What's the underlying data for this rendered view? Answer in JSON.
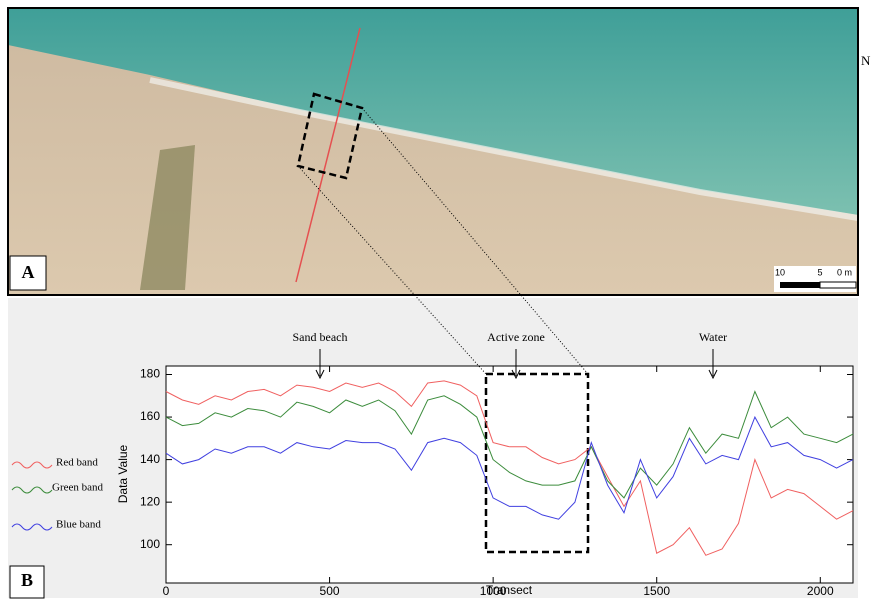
{
  "panel_a": {
    "label": "A",
    "north": "N",
    "scale_bar": [
      "10",
      "5",
      "0 m"
    ]
  },
  "chart_data": {
    "type": "line",
    "panel_label": "B",
    "x_label": "Transect",
    "y_label": "Data Value",
    "annotations": [
      "Sand beach",
      "Active zone",
      "Water"
    ],
    "x": [
      0,
      50,
      100,
      150,
      200,
      250,
      300,
      350,
      400,
      450,
      500,
      550,
      600,
      650,
      700,
      750,
      800,
      850,
      900,
      950,
      1000,
      1050,
      1100,
      1150,
      1200,
      1250,
      1300,
      1350,
      1400,
      1450,
      1500,
      1550,
      1600,
      1650,
      1700,
      1750,
      1800,
      1850,
      1900,
      1950,
      2000,
      2050,
      2100
    ],
    "series": [
      {
        "name": "Red band",
        "color": "#f06060",
        "values": [
          172,
          168,
          166,
          170,
          168,
          172,
          173,
          170,
          175,
          174,
          172,
          176,
          174,
          176,
          172,
          165,
          176,
          177,
          175,
          170,
          148,
          146,
          146,
          141,
          138,
          140,
          146,
          132,
          118,
          130,
          96,
          100,
          108,
          95,
          98,
          110,
          140,
          122,
          126,
          124,
          118,
          112,
          116
        ]
      },
      {
        "name": "Green band",
        "color": "#3c8c3c",
        "values": [
          160,
          156,
          157,
          162,
          160,
          164,
          163,
          160,
          167,
          165,
          162,
          168,
          165,
          168,
          163,
          152,
          168,
          170,
          166,
          160,
          140,
          134,
          130,
          128,
          128,
          130,
          146,
          130,
          122,
          136,
          128,
          138,
          155,
          143,
          152,
          150,
          172,
          155,
          160,
          152,
          150,
          148,
          152
        ]
      },
      {
        "name": "Blue band",
        "color": "#4040e0",
        "values": [
          143,
          138,
          140,
          145,
          143,
          146,
          146,
          143,
          148,
          146,
          145,
          149,
          148,
          148,
          145,
          135,
          148,
          150,
          148,
          142,
          122,
          118,
          118,
          114,
          112,
          120,
          148,
          128,
          115,
          140,
          122,
          132,
          150,
          138,
          142,
          140,
          160,
          146,
          148,
          142,
          140,
          136,
          140
        ]
      }
    ],
    "xlim": [
      0,
      2100
    ],
    "ylim": [
      82,
      184
    ],
    "xticks": [
      0,
      500,
      1000,
      1500,
      2000
    ],
    "yticks": [
      100,
      120,
      140,
      160,
      180
    ]
  }
}
